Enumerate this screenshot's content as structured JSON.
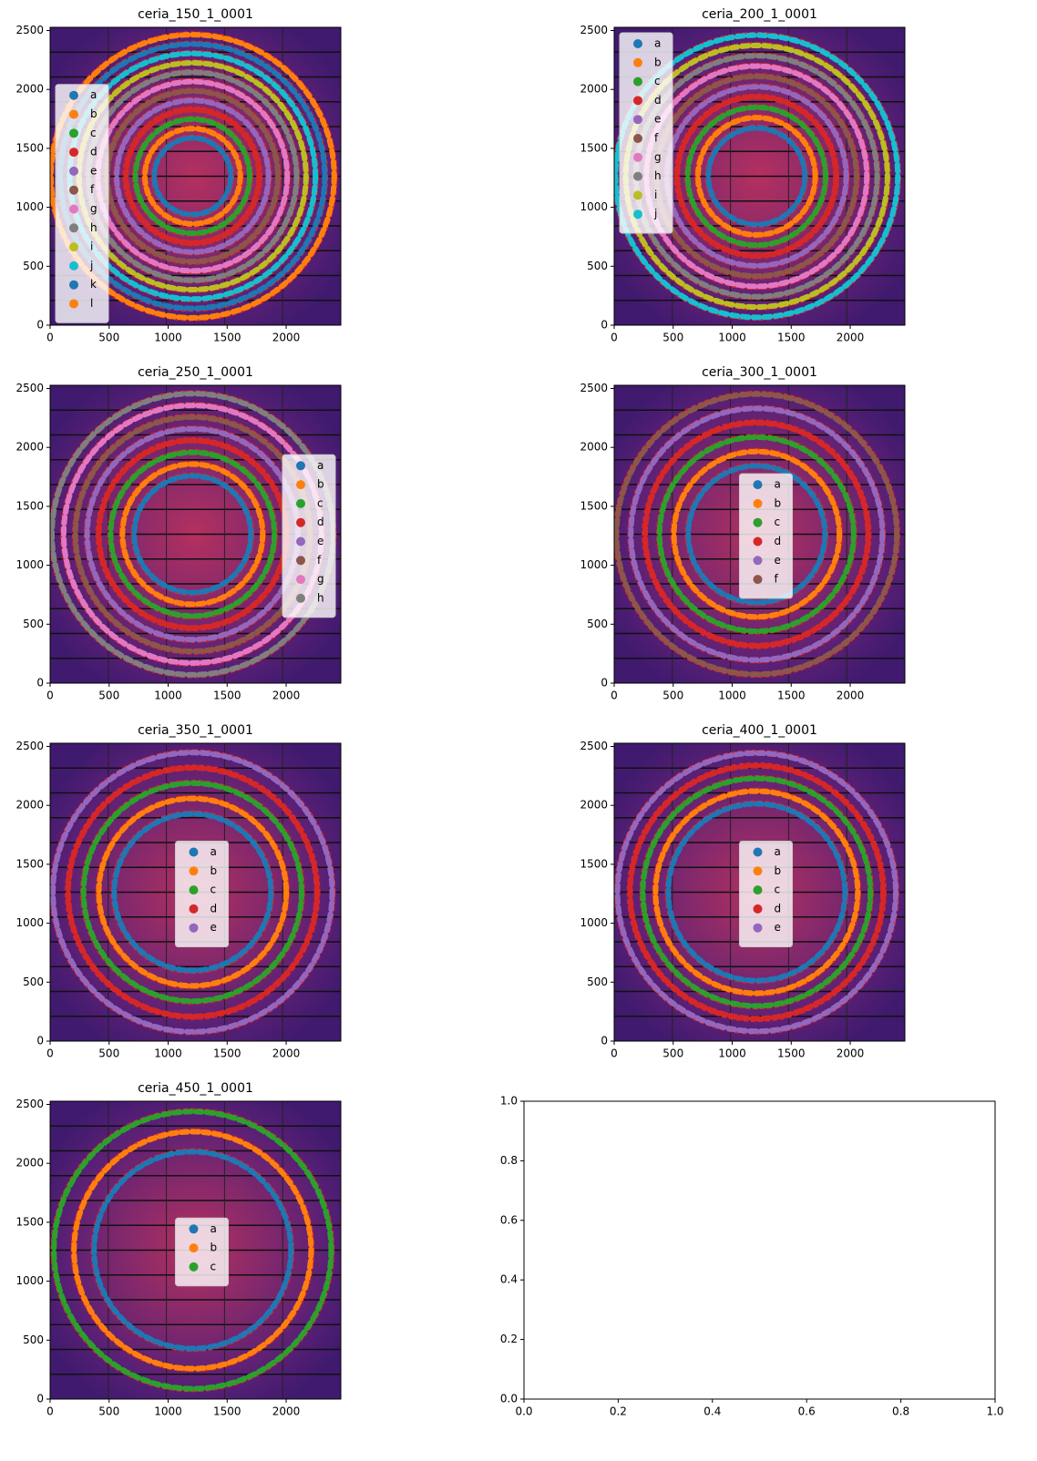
{
  "chart_data": [
    {
      "type": "image",
      "title": "ceria_150_1_0001",
      "xlim": [
        0,
        2463
      ],
      "ylim": [
        0,
        2527
      ],
      "xticks": [
        0,
        500,
        1000,
        1500,
        2000
      ],
      "yticks": [
        0,
        500,
        1000,
        1500,
        2000,
        2500
      ],
      "legend": "center left",
      "series": [
        {
          "name": "a",
          "color": "#1f77b4"
        },
        {
          "name": "b",
          "color": "#ff7f0e"
        },
        {
          "name": "c",
          "color": "#2ca02c"
        },
        {
          "name": "d",
          "color": "#d62728"
        },
        {
          "name": "e",
          "color": "#9467bd"
        },
        {
          "name": "f",
          "color": "#8c564b"
        },
        {
          "name": "g",
          "color": "#e377c2"
        },
        {
          "name": "h",
          "color": "#7f7f7f"
        },
        {
          "name": "i",
          "color": "#bcbd22"
        },
        {
          "name": "j",
          "color": "#17becf"
        },
        {
          "name": "k",
          "color": "#1f77b4"
        },
        {
          "name": "l",
          "color": "#ff7f0e"
        }
      ]
    },
    {
      "type": "image",
      "title": "ceria_200_1_0001",
      "xlim": [
        0,
        2463
      ],
      "ylim": [
        0,
        2527
      ],
      "xticks": [
        0,
        500,
        1000,
        1500,
        2000
      ],
      "yticks": [
        0,
        500,
        1000,
        1500,
        2000,
        2500
      ],
      "legend": "upper left",
      "series": [
        {
          "name": "a",
          "color": "#1f77b4"
        },
        {
          "name": "b",
          "color": "#ff7f0e"
        },
        {
          "name": "c",
          "color": "#2ca02c"
        },
        {
          "name": "d",
          "color": "#d62728"
        },
        {
          "name": "e",
          "color": "#9467bd"
        },
        {
          "name": "f",
          "color": "#8c564b"
        },
        {
          "name": "g",
          "color": "#e377c2"
        },
        {
          "name": "h",
          "color": "#7f7f7f"
        },
        {
          "name": "i",
          "color": "#bcbd22"
        },
        {
          "name": "j",
          "color": "#17becf"
        }
      ]
    },
    {
      "type": "image",
      "title": "ceria_250_1_0001",
      "xlim": [
        0,
        2463
      ],
      "ylim": [
        0,
        2527
      ],
      "xticks": [
        0,
        500,
        1000,
        1500,
        2000
      ],
      "yticks": [
        0,
        500,
        1000,
        1500,
        2000,
        2500
      ],
      "legend": "center right",
      "series": [
        {
          "name": "a",
          "color": "#1f77b4"
        },
        {
          "name": "b",
          "color": "#ff7f0e"
        },
        {
          "name": "c",
          "color": "#2ca02c"
        },
        {
          "name": "d",
          "color": "#d62728"
        },
        {
          "name": "e",
          "color": "#9467bd"
        },
        {
          "name": "f",
          "color": "#8c564b"
        },
        {
          "name": "g",
          "color": "#e377c2"
        },
        {
          "name": "h",
          "color": "#7f7f7f"
        }
      ]
    },
    {
      "type": "image",
      "title": "ceria_300_1_0001",
      "xlim": [
        0,
        2463
      ],
      "ylim": [
        0,
        2527
      ],
      "xticks": [
        0,
        500,
        1000,
        1500,
        2000
      ],
      "yticks": [
        0,
        500,
        1000,
        1500,
        2000,
        2500
      ],
      "legend": "center",
      "series": [
        {
          "name": "a",
          "color": "#1f77b4"
        },
        {
          "name": "b",
          "color": "#ff7f0e"
        },
        {
          "name": "c",
          "color": "#2ca02c"
        },
        {
          "name": "d",
          "color": "#d62728"
        },
        {
          "name": "e",
          "color": "#9467bd"
        },
        {
          "name": "f",
          "color": "#8c564b"
        }
      ]
    },
    {
      "type": "image",
      "title": "ceria_350_1_0001",
      "xlim": [
        0,
        2463
      ],
      "ylim": [
        0,
        2527
      ],
      "xticks": [
        0,
        500,
        1000,
        1500,
        2000
      ],
      "yticks": [
        0,
        500,
        1000,
        1500,
        2000,
        2500
      ],
      "legend": "center",
      "series": [
        {
          "name": "a",
          "color": "#1f77b4"
        },
        {
          "name": "b",
          "color": "#ff7f0e"
        },
        {
          "name": "c",
          "color": "#2ca02c"
        },
        {
          "name": "d",
          "color": "#d62728"
        },
        {
          "name": "e",
          "color": "#9467bd"
        }
      ]
    },
    {
      "type": "image",
      "title": "ceria_400_1_0001",
      "xlim": [
        0,
        2463
      ],
      "ylim": [
        0,
        2527
      ],
      "xticks": [
        0,
        500,
        1000,
        1500,
        2000
      ],
      "yticks": [
        0,
        500,
        1000,
        1500,
        2000,
        2500
      ],
      "legend": "center",
      "series": [
        {
          "name": "a",
          "color": "#1f77b4"
        },
        {
          "name": "b",
          "color": "#ff7f0e"
        },
        {
          "name": "c",
          "color": "#2ca02c"
        },
        {
          "name": "d",
          "color": "#d62728"
        },
        {
          "name": "e",
          "color": "#9467bd"
        }
      ]
    },
    {
      "type": "image",
      "title": "ceria_450_1_0001",
      "xlim": [
        0,
        2463
      ],
      "ylim": [
        0,
        2527
      ],
      "xticks": [
        0,
        500,
        1000,
        1500,
        2000
      ],
      "yticks": [
        0,
        500,
        1000,
        1500,
        2000,
        2500
      ],
      "legend": "center",
      "series": [
        {
          "name": "a",
          "color": "#1f77b4"
        },
        {
          "name": "b",
          "color": "#ff7f0e"
        },
        {
          "name": "c",
          "color": "#2ca02c"
        }
      ]
    },
    {
      "type": "empty",
      "xlim": [
        0,
        1
      ],
      "ylim": [
        0,
        1
      ],
      "xticks": [
        {
          "value": 0,
          "label": "0.0"
        },
        {
          "value": 0.2,
          "label": "0.2"
        },
        {
          "value": 0.4,
          "label": "0.4"
        },
        {
          "value": 0.6,
          "label": "0.6"
        },
        {
          "value": 0.8,
          "label": "0.8"
        },
        {
          "value": 1,
          "label": "1.0"
        }
      ],
      "yticks": [
        {
          "value": 0,
          "label": "0.0"
        },
        {
          "value": 0.2,
          "label": "0.2"
        },
        {
          "value": 0.4,
          "label": "0.4"
        },
        {
          "value": 0.6,
          "label": "0.6"
        },
        {
          "value": 0.8,
          "label": "0.8"
        },
        {
          "value": 1,
          "label": "1.0"
        }
      ]
    }
  ]
}
